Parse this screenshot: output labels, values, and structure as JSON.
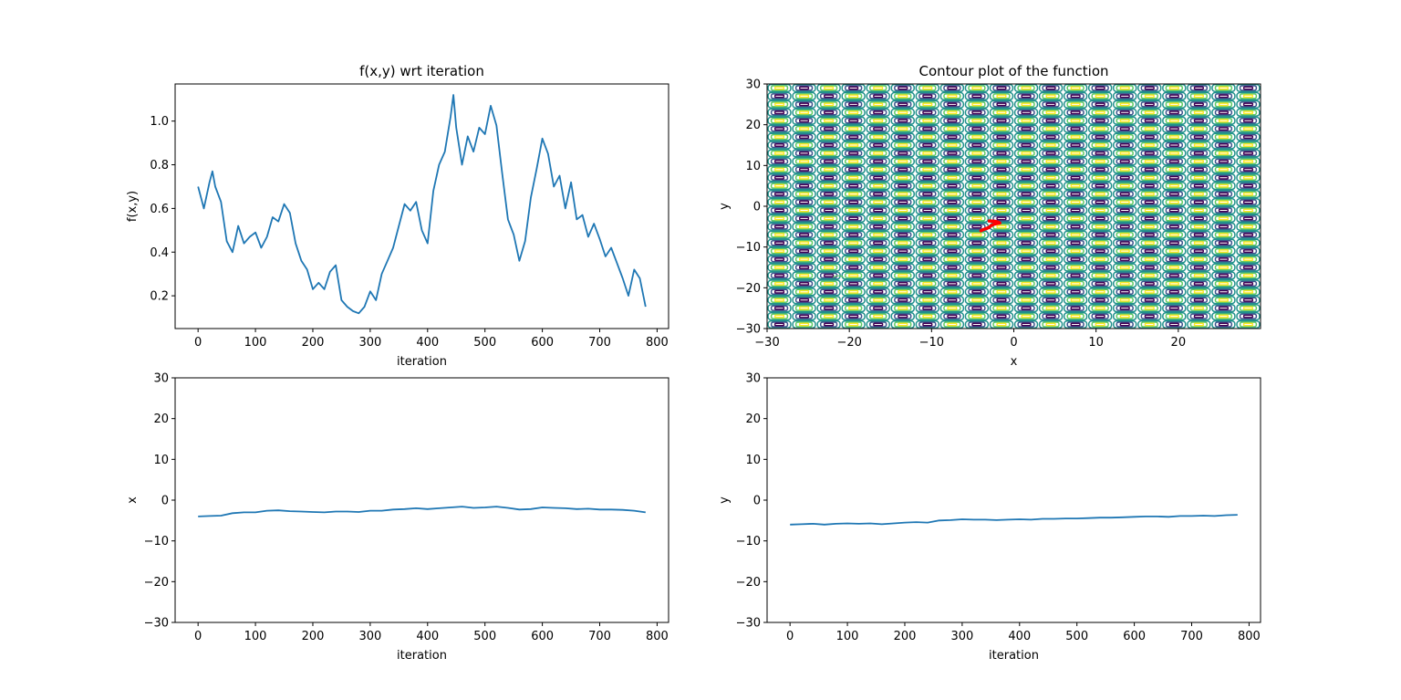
{
  "chart_data": [
    {
      "type": "line",
      "title": "f(x,y) wrt iteration",
      "xlabel": "iteration",
      "ylabel": "f(x,y)",
      "xlim": [
        -40,
        820
      ],
      "ylim": [
        0.05,
        1.17
      ],
      "xticks": [
        0,
        100,
        200,
        300,
        400,
        500,
        600,
        700,
        800
      ],
      "yticks": [
        0.2,
        0.4,
        0.6,
        0.8,
        1.0
      ],
      "ytick_labels": [
        "0.2",
        "0.4",
        "0.6",
        "0.8",
        "1.0"
      ],
      "grid": false,
      "series": [
        {
          "color": "#1f77b4",
          "x": [
            0,
            10,
            20,
            25,
            30,
            40,
            50,
            60,
            70,
            80,
            90,
            100,
            110,
            120,
            130,
            140,
            150,
            160,
            170,
            180,
            190,
            200,
            210,
            220,
            230,
            240,
            250,
            260,
            270,
            280,
            290,
            300,
            310,
            320,
            330,
            340,
            350,
            360,
            370,
            380,
            390,
            400,
            410,
            420,
            430,
            440,
            445,
            450,
            460,
            470,
            480,
            490,
            500,
            510,
            520,
            530,
            540,
            550,
            560,
            570,
            580,
            590,
            600,
            610,
            620,
            630,
            640,
            650,
            660,
            670,
            680,
            690,
            700,
            710,
            720,
            730,
            740,
            750,
            760,
            770,
            780
          ],
          "values": [
            0.7,
            0.6,
            0.72,
            0.77,
            0.7,
            0.63,
            0.45,
            0.4,
            0.52,
            0.44,
            0.47,
            0.49,
            0.42,
            0.47,
            0.56,
            0.54,
            0.62,
            0.58,
            0.44,
            0.36,
            0.32,
            0.23,
            0.26,
            0.23,
            0.31,
            0.34,
            0.18,
            0.15,
            0.13,
            0.12,
            0.15,
            0.22,
            0.18,
            0.3,
            0.36,
            0.42,
            0.52,
            0.62,
            0.59,
            0.63,
            0.5,
            0.44,
            0.68,
            0.8,
            0.86,
            1.02,
            1.12,
            0.97,
            0.8,
            0.93,
            0.86,
            0.97,
            0.94,
            1.07,
            0.98,
            0.76,
            0.55,
            0.48,
            0.36,
            0.45,
            0.65,
            0.78,
            0.92,
            0.85,
            0.7,
            0.75,
            0.6,
            0.72,
            0.55,
            0.57,
            0.47,
            0.53,
            0.46,
            0.38,
            0.42,
            0.35,
            0.28,
            0.2,
            0.32,
            0.28,
            0.15
          ]
        }
      ]
    },
    {
      "type": "contour",
      "title": "Contour plot of the function",
      "xlabel": "x",
      "ylabel": "y",
      "xlim": [
        -30,
        30
      ],
      "ylim": [
        -30,
        30
      ],
      "xticks": [
        -30,
        -20,
        -10,
        0,
        10,
        20
      ],
      "yticks": [
        -30,
        -20,
        -10,
        0,
        10,
        20,
        30
      ],
      "xtick_labels": [
        "−30",
        "−20",
        "−10",
        "0",
        "10",
        "20"
      ],
      "ytick_labels": [
        "−30",
        "−20",
        "−10",
        "0",
        "10",
        "20",
        "30"
      ],
      "grid": false,
      "colors": {
        "low": "#440154",
        "mid_low": "#3b528b",
        "mid": "#21918c",
        "mid_high": "#5ec962",
        "high": "#fde725"
      },
      "trajectory": {
        "color": "#ff0000",
        "x": [
          -4.0,
          -3.8,
          -3.0,
          -2.8,
          -2.6,
          -2.4,
          -2.0,
          -1.7,
          -1.9,
          -2.3,
          -3.0
        ],
        "y": [
          -6.0,
          -5.8,
          -5.2,
          -4.8,
          -4.6,
          -4.4,
          -4.2,
          -4.1,
          -3.9,
          -3.7,
          -3.6
        ]
      }
    },
    {
      "type": "line",
      "title": "",
      "xlabel": "iteration",
      "ylabel": "x",
      "xlim": [
        -40,
        820
      ],
      "ylim": [
        -30,
        30
      ],
      "xticks": [
        0,
        100,
        200,
        300,
        400,
        500,
        600,
        700,
        800
      ],
      "yticks": [
        -30,
        -20,
        -10,
        0,
        10,
        20,
        30
      ],
      "ytick_labels": [
        "−30",
        "−20",
        "−10",
        "0",
        "10",
        "20",
        "30"
      ],
      "grid": false,
      "series": [
        {
          "color": "#1f77b4",
          "x": [
            0,
            20,
            40,
            60,
            80,
            100,
            120,
            140,
            160,
            180,
            200,
            220,
            240,
            260,
            280,
            300,
            320,
            340,
            360,
            380,
            400,
            420,
            440,
            460,
            480,
            500,
            520,
            540,
            560,
            580,
            600,
            620,
            640,
            660,
            680,
            700,
            720,
            740,
            760,
            780
          ],
          "values": [
            -4.0,
            -3.9,
            -3.8,
            -3.2,
            -3.0,
            -3.0,
            -2.6,
            -2.5,
            -2.7,
            -2.8,
            -2.9,
            -3.0,
            -2.8,
            -2.8,
            -2.9,
            -2.6,
            -2.6,
            -2.3,
            -2.2,
            -2.0,
            -2.2,
            -2.0,
            -1.8,
            -1.6,
            -1.9,
            -1.8,
            -1.6,
            -1.9,
            -2.3,
            -2.2,
            -1.8,
            -1.9,
            -2.0,
            -2.2,
            -2.1,
            -2.3,
            -2.3,
            -2.4,
            -2.6,
            -3.0
          ]
        }
      ]
    },
    {
      "type": "line",
      "title": "",
      "xlabel": "iteration",
      "ylabel": "y",
      "xlim": [
        -40,
        820
      ],
      "ylim": [
        -30,
        30
      ],
      "xticks": [
        0,
        100,
        200,
        300,
        400,
        500,
        600,
        700,
        800
      ],
      "yticks": [
        -30,
        -20,
        -10,
        0,
        10,
        20,
        30
      ],
      "ytick_labels": [
        "−30",
        "−20",
        "−10",
        "0",
        "10",
        "20",
        "30"
      ],
      "grid": false,
      "series": [
        {
          "color": "#1f77b4",
          "x": [
            0,
            20,
            40,
            60,
            80,
            100,
            120,
            140,
            160,
            180,
            200,
            220,
            240,
            260,
            280,
            300,
            320,
            340,
            360,
            380,
            400,
            420,
            440,
            460,
            480,
            500,
            520,
            540,
            560,
            580,
            600,
            620,
            640,
            660,
            680,
            700,
            720,
            740,
            760,
            780
          ],
          "values": [
            -6.0,
            -5.9,
            -5.8,
            -6.0,
            -5.8,
            -5.7,
            -5.8,
            -5.7,
            -5.9,
            -5.7,
            -5.5,
            -5.4,
            -5.5,
            -5.0,
            -4.9,
            -4.7,
            -4.8,
            -4.8,
            -4.9,
            -4.8,
            -4.7,
            -4.8,
            -4.6,
            -4.6,
            -4.5,
            -4.5,
            -4.4,
            -4.3,
            -4.3,
            -4.2,
            -4.1,
            -4.0,
            -4.0,
            -4.1,
            -3.9,
            -3.9,
            -3.8,
            -3.9,
            -3.7,
            -3.6
          ]
        }
      ]
    }
  ]
}
